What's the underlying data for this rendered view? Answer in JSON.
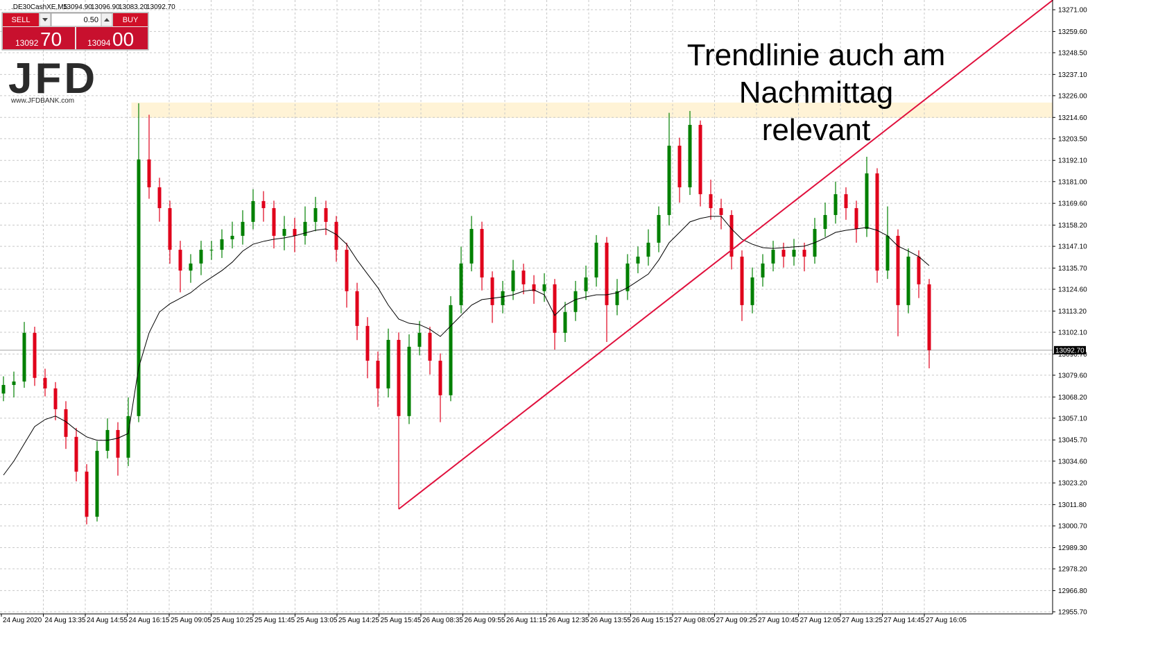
{
  "chart_data": {
    "type": "candlestick",
    "symbol": ".DE30CashXE,M5",
    "ohlc_header": [
      "13094.90",
      "13096.90",
      "13083.20",
      "13092.70"
    ],
    "trade_panel": {
      "sell": "SELL",
      "buy": "BUY",
      "lot": "0.50",
      "sell_big": "13092",
      "sell_small": "70",
      "buy_big": "13094",
      "buy_small": "00"
    },
    "logo": {
      "name": "JFD",
      "url": "www.JFDBANK.com"
    },
    "annotation": [
      "Trendlinie auch am",
      "Nachmittag",
      "relevant"
    ],
    "up_color": "#008000",
    "down_color": "#e0001b",
    "ma_color": "#000000",
    "trendline_color": "#e0103d",
    "zone_color": "#fff3d6",
    "grid": true,
    "ylim": [
      12954.6,
      13276.1
    ],
    "yticks": [
      {
        "value": 13271.0,
        "label": "13271.00"
      },
      {
        "value": 13259.6,
        "label": "13259.60"
      },
      {
        "value": 13248.5,
        "label": "13248.50"
      },
      {
        "value": 13237.1,
        "label": "13237.10"
      },
      {
        "value": 13226.0,
        "label": "13226.00"
      },
      {
        "value": 13214.6,
        "label": "13214.60"
      },
      {
        "value": 13203.5,
        "label": "13203.50"
      },
      {
        "value": 13192.1,
        "label": "13192.10"
      },
      {
        "value": 13181.0,
        "label": "13181.00"
      },
      {
        "value": 13169.6,
        "label": "13169.60"
      },
      {
        "value": 13158.2,
        "label": "13158.20"
      },
      {
        "value": 13147.1,
        "label": "13147.10"
      },
      {
        "value": 13135.7,
        "label": "13135.70"
      },
      {
        "value": 13124.6,
        "label": "13124.60"
      },
      {
        "value": 13113.2,
        "label": "13113.20"
      },
      {
        "value": 13102.1,
        "label": "13102.10"
      },
      {
        "value": 13090.7,
        "label": "13090.70"
      },
      {
        "value": 13079.6,
        "label": "13079.60"
      },
      {
        "value": 13068.2,
        "label": "13068.20"
      },
      {
        "value": 13057.1,
        "label": "13057.10"
      },
      {
        "value": 13045.7,
        "label": "13045.70"
      },
      {
        "value": 13034.6,
        "label": "13034.60"
      },
      {
        "value": 13023.2,
        "label": "13023.20"
      },
      {
        "value": 13011.8,
        "label": "13011.80"
      },
      {
        "value": 13000.7,
        "label": "13000.70"
      },
      {
        "value": 12989.3,
        "label": "12989.30"
      },
      {
        "value": 12978.2,
        "label": "12978.20"
      },
      {
        "value": 12966.8,
        "label": "12966.80"
      },
      {
        "value": 12955.7,
        "label": "12955.70"
      }
    ],
    "xtick_labels": [
      "24 Aug 2020",
      "24 Aug 13:35",
      "24 Aug 14:55",
      "24 Aug 16:15",
      "25 Aug 09:05",
      "25 Aug 10:25",
      "25 Aug 11:45",
      "25 Aug 13:05",
      "25 Aug 14:25",
      "25 Aug 15:45",
      "26 Aug 08:35",
      "26 Aug 09:55",
      "26 Aug 11:15",
      "26 Aug 12:35",
      "26 Aug 13:55",
      "26 Aug 15:15",
      "27 Aug 08:05",
      "27 Aug 09:25",
      "27 Aug 10:45",
      "27 Aug 12:05",
      "27 Aug 13:25",
      "27 Aug 14:45",
      "27 Aug 16:05"
    ],
    "current_price": 13092.7,
    "current_price_label": "13092.70",
    "trendline": {
      "x": [
        38,
        100.9
      ],
      "y": [
        13009.5,
        13276.1
      ]
    },
    "zone": {
      "x": 12.3,
      "y": [
        13214.4,
        13222.4
      ]
    },
    "open": [
      13070.0,
      13074.5,
      13076.3,
      13101.8,
      13078.2,
      13072.7,
      13061.8,
      13047.3,
      13029.1,
      13005.5,
      13040.0,
      13050.9,
      13036.4,
      13058.2,
      13192.6,
      13178.0,
      13167.1,
      13145.3,
      13134.4,
      13138.1,
      13145.3,
      13145.3,
      13150.8,
      13152.6,
      13159.9,
      13170.8,
      13167.1,
      13152.6,
      13156.2,
      13152.6,
      13159.9,
      13167.1,
      13159.9,
      13145.3,
      13123.6,
      13105.4,
      13087.2,
      13072.7,
      13098.1,
      13058.2,
      13094.5,
      13101.8,
      13087.2,
      13069.1,
      13116.3,
      13138.1,
      13156.2,
      13130.8,
      13116.3,
      13123.6,
      13134.4,
      13127.2,
      13123.6,
      13127.2,
      13101.8,
      13112.7,
      13123.6,
      13130.8,
      13149.0,
      13116.3,
      13123.6,
      13138.1,
      13141.7,
      13149.0,
      13163.5,
      13199.8,
      13178.0,
      13210.7,
      13174.4,
      13167.1,
      13163.5,
      13141.7,
      13116.3,
      13130.8,
      13138.1,
      13145.3,
      13141.7,
      13145.3,
      13141.7,
      13156.2,
      13163.5,
      13174.4,
      13167.1,
      13156.2,
      13185.3,
      13134.4,
      13152.6,
      13116.3,
      13141.7,
      13127.2
    ],
    "high": [
      13079.0,
      13081.5,
      13107.5,
      13105.0,
      13083.0,
      13076.0,
      13066.0,
      13052.0,
      13033.0,
      13045.0,
      13057.0,
      13055.0,
      13068.0,
      13222.0,
      13216.0,
      13183.0,
      13171.0,
      13150.0,
      13143.0,
      13150.0,
      13150.0,
      13156.0,
      13160.0,
      13166.0,
      13177.0,
      13176.0,
      13171.0,
      13163.0,
      13162.0,
      13168.0,
      13173.0,
      13171.0,
      13163.0,
      13149.0,
      13128.0,
      13110.0,
      13092.0,
      13104.0,
      13102.0,
      13101.0,
      13108.0,
      13105.0,
      13091.0,
      13121.0,
      13147.0,
      13163.0,
      13160.0,
      13134.0,
      13129.0,
      13140.0,
      13138.0,
      13132.0,
      13133.0,
      13130.0,
      13118.0,
      13129.0,
      13137.0,
      13153.0,
      13152.0,
      13130.0,
      13143.0,
      13147.0,
      13156.0,
      13168.0,
      13217.0,
      13204.0,
      13218.0,
      13213.0,
      13182.0,
      13172.0,
      13166.0,
      13145.0,
      13136.0,
      13143.0,
      13150.0,
      13149.0,
      13151.0,
      13149.0,
      13162.0,
      13170.0,
      13181.0,
      13178.0,
      13171.0,
      13194.0,
      13188.0,
      13168.0,
      13156.0,
      13146.0,
      13145.0,
      13130.0
    ],
    "low": [
      13066.0,
      13068.0,
      13073.0,
      13074.0,
      13068.5,
      13056.0,
      13041.0,
      13024.0,
      13001.5,
      13003.0,
      13036.0,
      13027.0,
      13032.0,
      13055.0,
      13172.0,
      13160.0,
      13138.0,
      13123.0,
      13128.0,
      13132.0,
      13140.0,
      13141.0,
      13146.0,
      13148.0,
      13156.0,
      13160.0,
      13146.0,
      13145.0,
      13144.0,
      13148.0,
      13155.0,
      13153.0,
      13139.0,
      13115.0,
      13098.0,
      13078.0,
      13063.0,
      13068.0,
      13009.5,
      13054.0,
      13090.0,
      13080.0,
      13055.0,
      13066.0,
      13112.0,
      13134.0,
      13124.0,
      13107.0,
      13112.0,
      13119.0,
      13122.0,
      13117.0,
      13118.0,
      13093.0,
      13097.0,
      13108.0,
      13119.0,
      13126.0,
      13097.0,
      13111.0,
      13119.0,
      13133.0,
      13137.0,
      13144.0,
      13158.0,
      13170.0,
      13174.0,
      13168.0,
      13161.0,
      13156.0,
      13135.0,
      13108.0,
      13112.0,
      13126.0,
      13134.0,
      13136.0,
      13137.0,
      13134.0,
      13138.0,
      13152.0,
      13159.0,
      13161.0,
      13149.0,
      13152.0,
      13128.0,
      13130.0,
      13100.0,
      13112.0,
      13120.0,
      13083.2
    ],
    "close": [
      13074.5,
      13076.3,
      13101.8,
      13078.2,
      13072.7,
      13061.8,
      13047.3,
      13029.1,
      13005.5,
      13040.0,
      13050.9,
      13036.4,
      13058.2,
      13192.6,
      13178.0,
      13167.1,
      13145.3,
      13134.4,
      13138.1,
      13145.3,
      13145.3,
      13150.8,
      13152.6,
      13159.9,
      13170.8,
      13167.1,
      13152.6,
      13156.2,
      13152.6,
      13159.9,
      13167.1,
      13159.9,
      13145.3,
      13123.6,
      13105.4,
      13087.2,
      13072.7,
      13098.1,
      13058.2,
      13094.5,
      13101.8,
      13087.2,
      13069.1,
      13116.3,
      13138.1,
      13156.2,
      13130.8,
      13116.3,
      13123.6,
      13134.4,
      13127.2,
      13123.6,
      13127.2,
      13101.8,
      13112.7,
      13123.6,
      13130.8,
      13149.0,
      13116.3,
      13123.6,
      13138.1,
      13141.7,
      13149.0,
      13163.5,
      13199.8,
      13178.0,
      13210.7,
      13174.4,
      13167.1,
      13163.5,
      13141.7,
      13116.3,
      13130.8,
      13138.1,
      13145.3,
      13141.7,
      13145.3,
      13141.7,
      13156.2,
      13163.5,
      13174.4,
      13167.1,
      13156.2,
      13185.3,
      13134.4,
      13152.6,
      13116.3,
      13141.7,
      13127.2,
      13092.7
    ],
    "ma": [
      13027.3,
      13034.6,
      13043.7,
      13052.7,
      13056.4,
      13058.2,
      13055.3,
      13050.9,
      13047.3,
      13045.5,
      13045.5,
      13046.6,
      13049.1,
      13083.6,
      13101.8,
      13112.7,
      13117.0,
      13119.9,
      13122.8,
      13127.2,
      13130.8,
      13134.4,
      13138.8,
      13144.6,
      13148.2,
      13149.7,
      13150.8,
      13151.5,
      13152.6,
      13154.1,
      13155.5,
      13156.2,
      13153.3,
      13148.2,
      13139.9,
      13132.6,
      13125.4,
      13116.3,
      13109.0,
      13106.8,
      13106.1,
      13103.6,
      13099.9,
      13105.4,
      13110.9,
      13116.3,
      13119.2,
      13119.9,
      13120.6,
      13121.7,
      13123.6,
      13124.3,
      13121.7,
      13110.9,
      13116.3,
      13119.2,
      13120.6,
      13121.7,
      13121.7,
      13122.8,
      13125.4,
      13129.0,
      13132.6,
      13139.9,
      13149.0,
      13154.4,
      13159.9,
      13161.7,
      13162.8,
      13162.8,
      13156.2,
      13150.8,
      13148.2,
      13146.4,
      13146.0,
      13146.4,
      13146.8,
      13147.2,
      13149.0,
      13151.5,
      13154.4,
      13155.5,
      13156.2,
      13157.0,
      13155.5,
      13152.6,
      13147.2,
      13144.6,
      13141.7,
      13137.0
    ]
  }
}
